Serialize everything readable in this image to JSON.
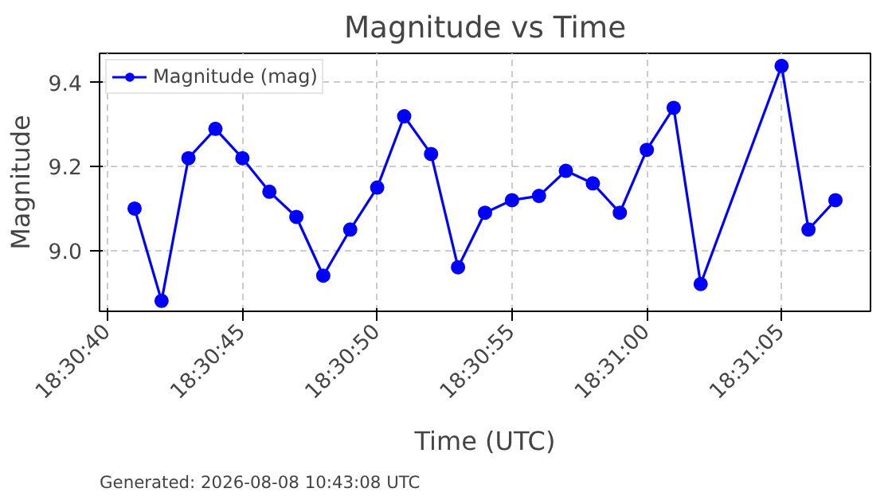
{
  "chart_data": {
    "type": "line",
    "title": "Magnitude vs Time",
    "xlabel": "Time (UTC)",
    "ylabel": "Magnitude",
    "x": [
      18.511389,
      18.511667,
      18.511944,
      18.512222,
      18.5125,
      18.512778,
      18.513056,
      18.513333,
      18.513611,
      18.513889,
      18.514167,
      18.514444,
      18.514722,
      18.515,
      18.515278,
      18.515556,
      18.515833,
      18.516111,
      18.516389,
      18.516667,
      18.516944,
      18.517222,
      18.518056,
      18.518333,
      18.518611
    ],
    "series": [
      {
        "name": "Magnitude (mag)",
        "color": "#0000ff",
        "values": [
          9.1,
          8.88,
          9.22,
          9.29,
          9.22,
          9.14,
          9.08,
          8.94,
          9.05,
          9.15,
          9.32,
          9.23,
          8.96,
          9.09,
          9.12,
          9.13,
          9.19,
          9.16,
          9.09,
          9.24,
          9.34,
          8.92,
          9.44,
          9.05,
          9.12
        ]
      }
    ],
    "xlim": [
      18.511028,
      18.518972
    ],
    "ylim": [
      8.855,
      9.47
    ],
    "xticks": [
      {
        "value": 18.511111,
        "label": "18:30:40"
      },
      {
        "value": 18.5125,
        "label": "18:30:45"
      },
      {
        "value": 18.513889,
        "label": "18:30:50"
      },
      {
        "value": 18.515278,
        "label": "18:30:55"
      },
      {
        "value": 18.516667,
        "label": "18:31:00"
      },
      {
        "value": 18.518056,
        "label": "18:31:05"
      }
    ],
    "yticks": [
      {
        "value": 9.0,
        "label": "9.0"
      },
      {
        "value": 9.2,
        "label": "9.2"
      },
      {
        "value": 9.4,
        "label": "9.4"
      }
    ],
    "grid": true,
    "legend": "top left",
    "marker": "circle",
    "line_style": "solid",
    "annotations": [
      "Generated: 2026-08-08 10:43:08 UTC"
    ]
  }
}
